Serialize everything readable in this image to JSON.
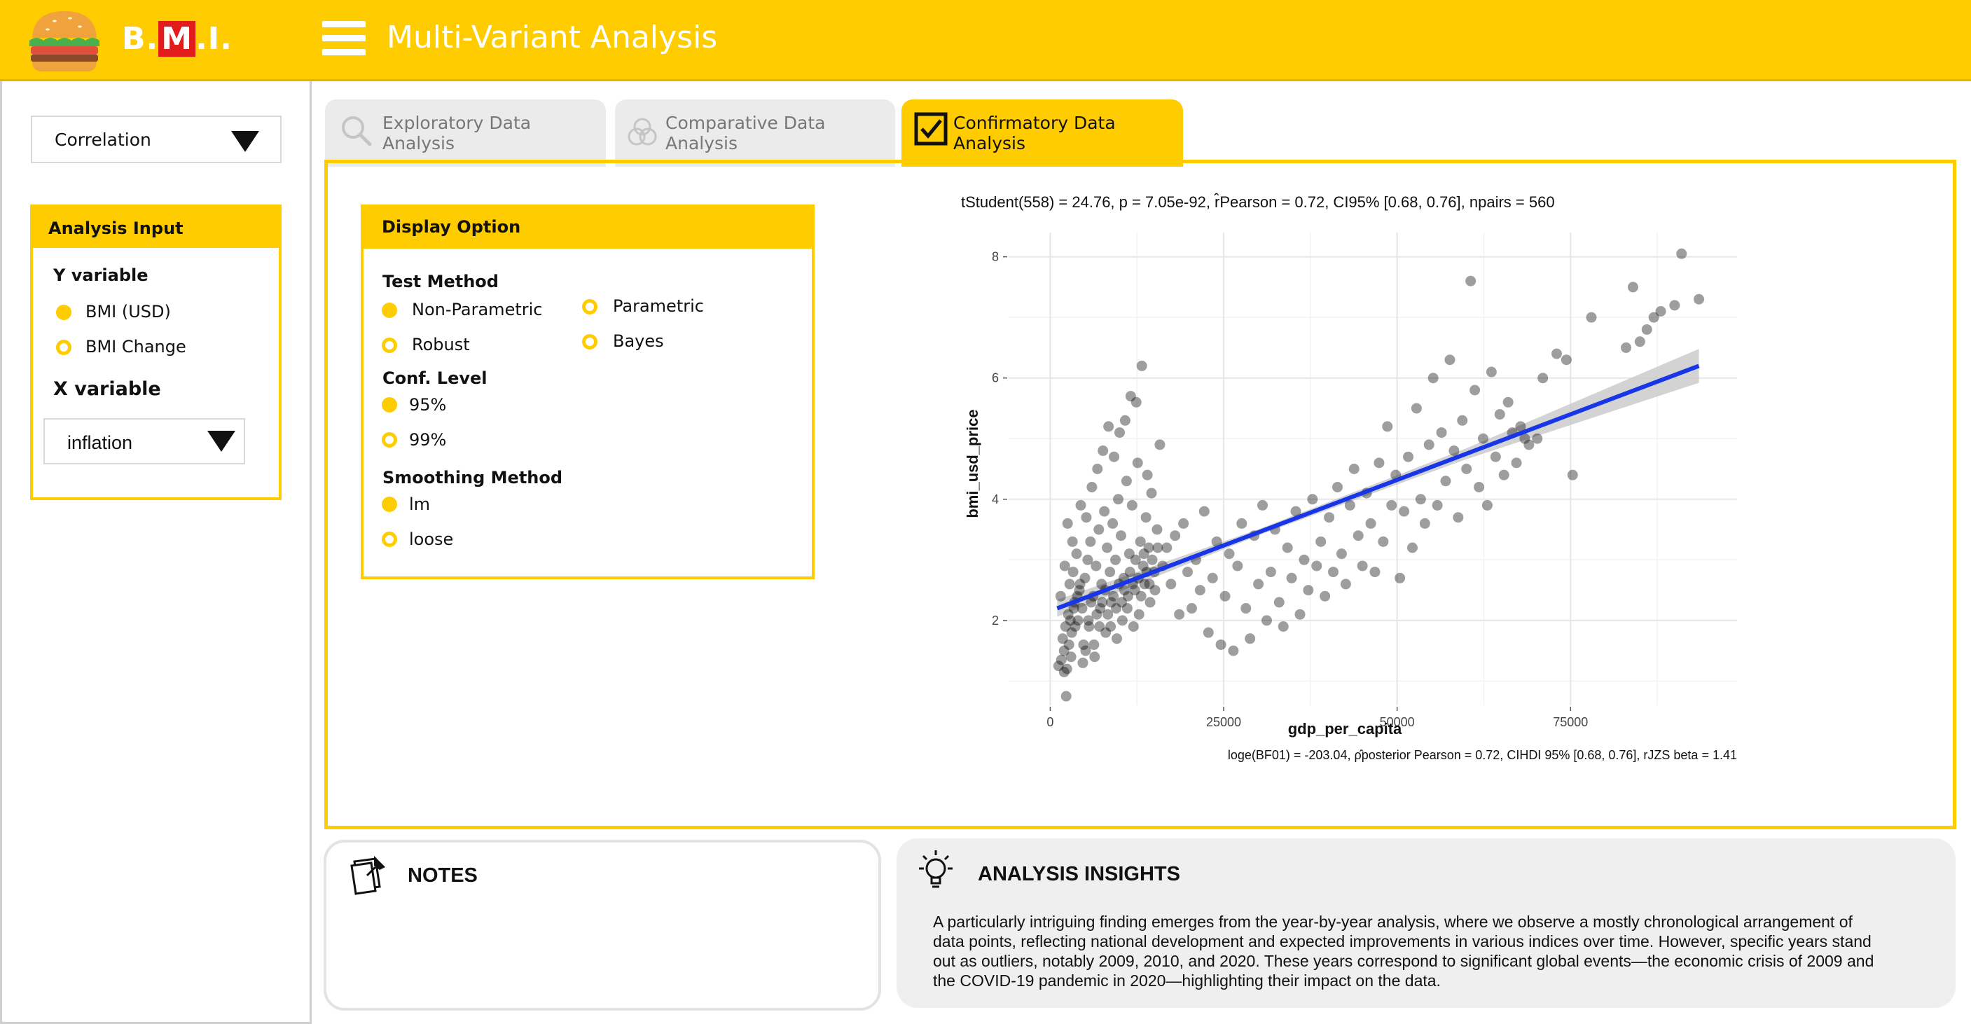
{
  "app": {
    "logo_text_prefix": "B.",
    "logo_text_m": "M",
    "logo_text_suffix": ".I.",
    "title": "Multi-Variant Analysis"
  },
  "sidebar": {
    "analysis_select": "Correlation",
    "analysis_input": {
      "title": "Analysis Input",
      "y_label": "Y variable",
      "y_options": [
        {
          "label": "BMI (USD)",
          "selected": true
        },
        {
          "label": "BMI Change",
          "selected": false
        }
      ],
      "x_label": "X variable",
      "x_select": "inflation"
    }
  },
  "tabs": [
    {
      "label": "Exploratory Data Analysis",
      "active": false,
      "icon": "search-icon"
    },
    {
      "label": "Comparative Data Analysis",
      "active": false,
      "icon": "venn-icon"
    },
    {
      "label": "Confirmatory Data Analysis",
      "active": true,
      "icon": "checkbox-icon"
    }
  ],
  "display_option": {
    "title": "Display Option",
    "test_method": {
      "label": "Test Method",
      "options": [
        {
          "label": "Non-Parametric",
          "selected": true
        },
        {
          "label": "Robust",
          "selected": false
        },
        {
          "label": "Parametric",
          "selected": false
        },
        {
          "label": "Bayes",
          "selected": false
        }
      ]
    },
    "conf_level": {
      "label": "Conf. Level",
      "options": [
        {
          "label": "95%",
          "selected": true
        },
        {
          "label": "99%",
          "selected": false
        }
      ]
    },
    "smoothing": {
      "label": "Smoothing Method",
      "options": [
        {
          "label": "lm",
          "selected": true
        },
        {
          "label": "loose",
          "selected": false
        }
      ]
    }
  },
  "chart_data": {
    "type": "scatter",
    "subtitle": "tStudent(558) = 24.76, p = 7.05e-92, r̂Pearson = 0.72, CI95% [0.68, 0.76], npairs = 560",
    "caption": "loge(BF01) = -203.04, ρ̂posterior Pearson = 0.72, CIHDI 95% [0.68, 0.76], rJZS beta = 1.41",
    "xlabel": "gdp_per_capita",
    "ylabel": "bmi_usd_price",
    "xlim": [
      -6000,
      99000
    ],
    "ylim": [
      0.6,
      8.4
    ],
    "x_ticks": [
      0,
      25000,
      50000,
      75000
    ],
    "x_tick_labels": [
      "0",
      "25000",
      "50000",
      "75000"
    ],
    "y_ticks": [
      2,
      4,
      6,
      8
    ],
    "y_tick_labels": [
      "2",
      "4",
      "6",
      "8"
    ],
    "grid": true,
    "fit_line": {
      "x": [
        1000,
        93500
      ],
      "y": [
        2.2,
        6.2
      ]
    },
    "point_color": "#000000",
    "line_color": "#1836e8",
    "band_color": "#c8c8c8",
    "series": [
      {
        "points": [
          [
            1200,
            1.25
          ],
          [
            1600,
            1.35
          ],
          [
            2000,
            1.5
          ],
          [
            2400,
            1.2
          ],
          [
            3000,
            1.4
          ],
          [
            1800,
            1.7
          ],
          [
            2200,
            1.9
          ],
          [
            2600,
            2.1
          ],
          [
            3100,
            1.8
          ],
          [
            3500,
            2.3
          ],
          [
            4000,
            2.0
          ],
          [
            2800,
            2.6
          ],
          [
            3300,
            2.8
          ],
          [
            1500,
            2.4
          ],
          [
            2100,
            2.9
          ],
          [
            3800,
            3.1
          ],
          [
            4200,
            2.5
          ],
          [
            4600,
            2.2
          ],
          [
            5000,
            2.7
          ],
          [
            5400,
            3.0
          ],
          [
            5800,
            3.3
          ],
          [
            6200,
            2.4
          ],
          [
            6600,
            2.9
          ],
          [
            7000,
            3.5
          ],
          [
            7400,
            2.6
          ],
          [
            7800,
            3.8
          ],
          [
            8200,
            3.2
          ],
          [
            8600,
            2.8
          ],
          [
            9000,
            3.6
          ],
          [
            9400,
            3.0
          ],
          [
            9800,
            4.0
          ],
          [
            10200,
            3.4
          ],
          [
            10600,
            2.7
          ],
          [
            11000,
            4.3
          ],
          [
            11400,
            3.1
          ],
          [
            11800,
            3.9
          ],
          [
            12200,
            2.5
          ],
          [
            12600,
            4.6
          ],
          [
            13000,
            3.3
          ],
          [
            13400,
            2.9
          ],
          [
            13800,
            3.7
          ],
          [
            14200,
            3.2
          ],
          [
            14600,
            4.1
          ],
          [
            15000,
            2.8
          ],
          [
            15400,
            3.5
          ],
          [
            2500,
            3.6
          ],
          [
            3200,
            3.3
          ],
          [
            4400,
            3.9
          ],
          [
            5200,
            3.7
          ],
          [
            6000,
            4.2
          ],
          [
            6800,
            4.5
          ],
          [
            7600,
            4.8
          ],
          [
            8400,
            5.2
          ],
          [
            9200,
            4.7
          ],
          [
            10000,
            5.1
          ],
          [
            10800,
            5.3
          ],
          [
            11600,
            5.7
          ],
          [
            12400,
            5.6
          ],
          [
            13200,
            6.2
          ],
          [
            14000,
            4.4
          ],
          [
            15800,
            4.9
          ],
          [
            4800,
            1.6
          ],
          [
            5600,
            1.9
          ],
          [
            6400,
            1.4
          ],
          [
            7200,
            2.2
          ],
          [
            8000,
            1.8
          ],
          [
            8800,
            2.3
          ],
          [
            9600,
            1.7
          ],
          [
            10400,
            2.0
          ],
          [
            11200,
            2.4
          ],
          [
            12000,
            1.9
          ],
          [
            12800,
            2.1
          ],
          [
            13600,
            2.6
          ],
          [
            14400,
            2.3
          ],
          [
            16200,
            2.9
          ],
          [
            16800,
            3.2
          ],
          [
            17400,
            2.6
          ],
          [
            18000,
            3.4
          ],
          [
            18600,
            2.1
          ],
          [
            19200,
            3.6
          ],
          [
            19800,
            2.8
          ],
          [
            20400,
            2.2
          ],
          [
            21000,
            3.0
          ],
          [
            21600,
            2.5
          ],
          [
            22200,
            3.8
          ],
          [
            22800,
            1.8
          ],
          [
            23400,
            2.7
          ],
          [
            24000,
            3.3
          ],
          [
            24600,
            1.6
          ],
          [
            25200,
            2.4
          ],
          [
            25800,
            3.1
          ],
          [
            26400,
            1.5
          ],
          [
            27000,
            2.9
          ],
          [
            27600,
            3.6
          ],
          [
            28200,
            2.2
          ],
          [
            28800,
            1.7
          ],
          [
            29400,
            3.4
          ],
          [
            30000,
            2.6
          ],
          [
            30600,
            3.9
          ],
          [
            31200,
            2.0
          ],
          [
            31800,
            2.8
          ],
          [
            32400,
            3.5
          ],
          [
            33000,
            2.3
          ],
          [
            33600,
            1.9
          ],
          [
            34200,
            3.2
          ],
          [
            34800,
            2.7
          ],
          [
            35400,
            3.8
          ],
          [
            36000,
            2.1
          ],
          [
            36600,
            3.0
          ],
          [
            37200,
            2.5
          ],
          [
            37800,
            4.0
          ],
          [
            38400,
            2.9
          ],
          [
            39000,
            3.3
          ],
          [
            39600,
            2.4
          ],
          [
            40200,
            3.7
          ],
          [
            40800,
            2.8
          ],
          [
            41400,
            4.2
          ],
          [
            42000,
            3.1
          ],
          [
            42600,
            2.6
          ],
          [
            43200,
            3.9
          ],
          [
            43800,
            4.5
          ],
          [
            44400,
            3.4
          ],
          [
            45000,
            2.9
          ],
          [
            45600,
            4.1
          ],
          [
            46200,
            3.6
          ],
          [
            46800,
            2.8
          ],
          [
            47400,
            4.6
          ],
          [
            48000,
            3.3
          ],
          [
            48600,
            5.2
          ],
          [
            49200,
            3.9
          ],
          [
            49800,
            4.4
          ],
          [
            50400,
            2.7
          ],
          [
            51000,
            3.8
          ],
          [
            51600,
            4.7
          ],
          [
            52200,
            3.2
          ],
          [
            52800,
            5.5
          ],
          [
            53400,
            4.0
          ],
          [
            54000,
            3.6
          ],
          [
            54600,
            4.9
          ],
          [
            55200,
            6.0
          ],
          [
            55800,
            3.9
          ],
          [
            56400,
            5.1
          ],
          [
            57000,
            4.3
          ],
          [
            57600,
            6.3
          ],
          [
            58200,
            4.8
          ],
          [
            58800,
            3.7
          ],
          [
            59400,
            5.3
          ],
          [
            60000,
            4.5
          ],
          [
            60600,
            7.6
          ],
          [
            61200,
            5.8
          ],
          [
            61800,
            4.2
          ],
          [
            62400,
            5.0
          ],
          [
            63000,
            3.9
          ],
          [
            63600,
            6.1
          ],
          [
            64200,
            4.7
          ],
          [
            64800,
            5.4
          ],
          [
            65400,
            4.4
          ],
          [
            66000,
            5.6
          ],
          [
            66600,
            5.1
          ],
          [
            67200,
            4.6
          ],
          [
            67800,
            5.2
          ],
          [
            68400,
            5.0
          ],
          [
            69000,
            4.9
          ],
          [
            70200,
            5.0
          ],
          [
            71000,
            6.0
          ],
          [
            73000,
            6.4
          ],
          [
            74400,
            6.3
          ],
          [
            75300,
            4.4
          ],
          [
            78000,
            7.0
          ],
          [
            83000,
            6.5
          ],
          [
            84000,
            7.5
          ],
          [
            85000,
            6.6
          ],
          [
            86000,
            6.8
          ],
          [
            87000,
            7.0
          ],
          [
            88000,
            7.1
          ],
          [
            90000,
            7.2
          ],
          [
            91000,
            8.05
          ],
          [
            93500,
            7.3
          ],
          [
            2000,
            1.15
          ],
          [
            2700,
            1.6
          ],
          [
            3600,
            1.9
          ],
          [
            2300,
            0.75
          ],
          [
            2900,
            2.0
          ],
          [
            3400,
            2.2
          ],
          [
            3900,
            2.4
          ],
          [
            4300,
            2.6
          ],
          [
            4700,
            1.3
          ],
          [
            5100,
            1.5
          ],
          [
            5500,
            2.0
          ],
          [
            5900,
            2.3
          ],
          [
            6300,
            1.6
          ],
          [
            6700,
            2.1
          ],
          [
            7100,
            1.9
          ],
          [
            7500,
            2.3
          ],
          [
            7900,
            2.5
          ],
          [
            8300,
            2.1
          ],
          [
            8700,
            1.9
          ],
          [
            9100,
            2.4
          ],
          [
            9500,
            2.2
          ],
          [
            9900,
            2.6
          ],
          [
            10300,
            2.3
          ],
          [
            10700,
            2.5
          ],
          [
            11100,
            2.2
          ],
          [
            11500,
            2.8
          ],
          [
            11900,
            2.6
          ],
          [
            12300,
            3.0
          ],
          [
            12700,
            2.7
          ],
          [
            13100,
            2.4
          ],
          [
            13500,
            3.1
          ],
          [
            13900,
            2.8
          ],
          [
            14300,
            2.6
          ],
          [
            14700,
            3.0
          ],
          [
            15100,
            2.5
          ],
          [
            15500,
            3.2
          ]
        ]
      }
    ]
  },
  "notes": {
    "title": "NOTES"
  },
  "insights": {
    "title": "ANALYSIS INSIGHTS",
    "text_lines": [
      "A particularly intriguing finding emerges from the year-by-year analysis, where we observe a mostly chronological arrangement of",
      "data points, reflecting national development and expected improvements in various indices over time. However, specific years stand",
      "out as outliers, notably 2009, 2010, and 2020. These years correspond to significant global events—the economic crisis of 2009 and",
      "the COVID-19 pandemic in 2020—highlighting their impact on the data."
    ]
  },
  "colors": {
    "accent": "#ffcc00",
    "logo_red": "#e21b1b"
  }
}
